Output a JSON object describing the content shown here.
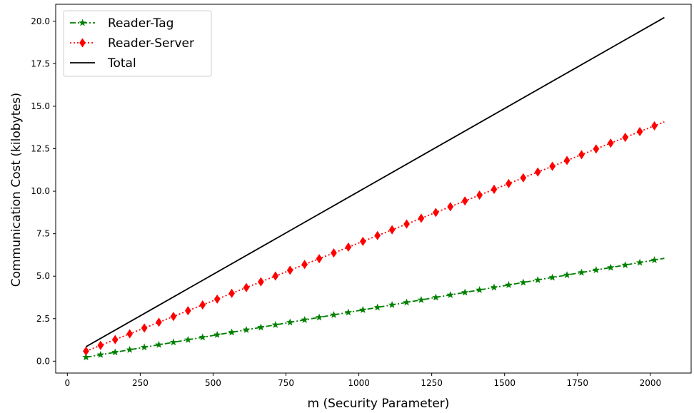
{
  "chart_data": {
    "type": "line",
    "xlabel": "m (Security Parameter)",
    "ylabel": "Communication Cost (kilobytes)",
    "xlim": [
      -40,
      2140
    ],
    "ylim": [
      -0.7,
      21.0
    ],
    "xticks": [
      0,
      250,
      500,
      750,
      1000,
      1250,
      1500,
      1750,
      2000
    ],
    "yticks": [
      0.0,
      2.5,
      5.0,
      7.5,
      10.0,
      12.5,
      15.0,
      17.5,
      20.0
    ],
    "xtick_labels": [
      "0",
      "250",
      "500",
      "750",
      "1000",
      "1250",
      "1500",
      "1750",
      "2000"
    ],
    "ytick_labels": [
      "0.0",
      "2.5",
      "5.0",
      "7.5",
      "10.0",
      "12.5",
      "15.0",
      "17.5",
      "20.0"
    ],
    "legend_position": "top-left",
    "grid": false,
    "series": [
      {
        "name": "Reader-Tag",
        "color": "#008000",
        "line_style": "dash-dot",
        "marker": "star",
        "x": [
          64,
          2048
        ],
        "y": [
          0.23,
          6.05
        ],
        "marker_x_start": 64,
        "marker_x_step": 50,
        "marker_count": 40
      },
      {
        "name": "Reader-Server",
        "color": "#ff0000",
        "line_style": "dotted",
        "marker": "diamond",
        "x": [
          64,
          2048
        ],
        "y": [
          0.59,
          14.08
        ],
        "marker_x_start": 64,
        "marker_x_step": 50,
        "marker_count": 40
      },
      {
        "name": "Total",
        "color": "#000000",
        "line_style": "solid",
        "marker": "none",
        "x": [
          64,
          2048
        ],
        "y": [
          0.85,
          20.22
        ]
      }
    ]
  }
}
